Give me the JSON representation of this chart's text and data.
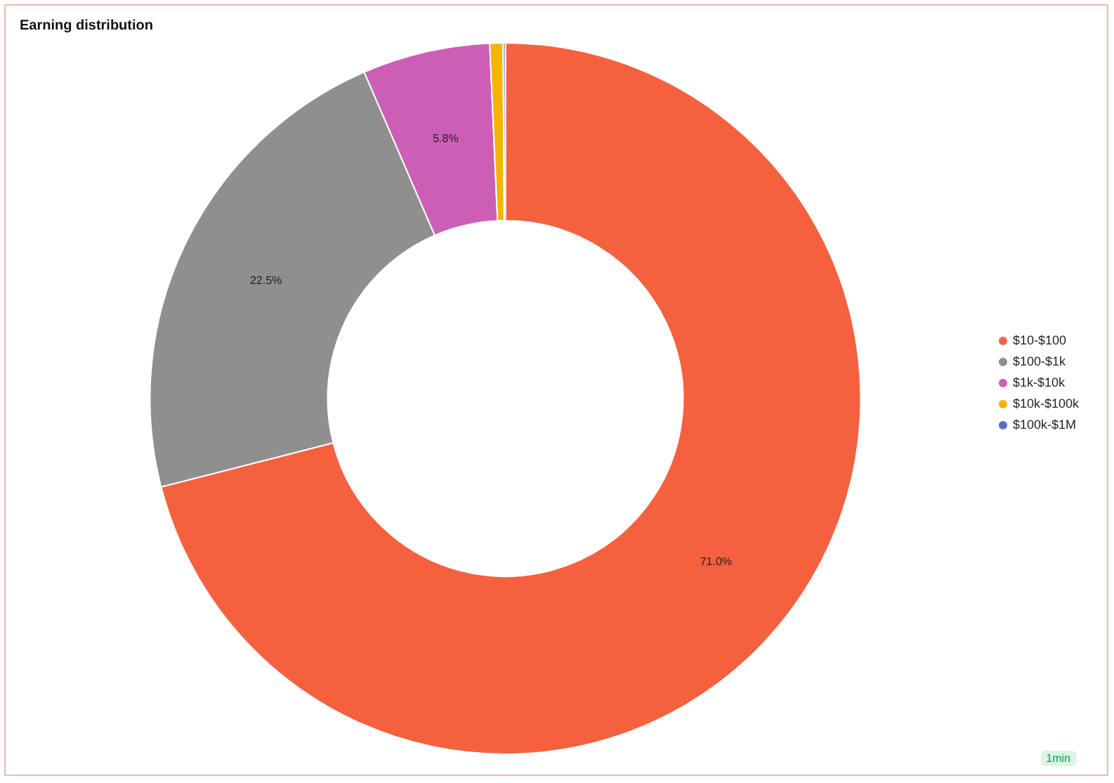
{
  "chart_data": {
    "type": "donut",
    "title": "Earning distribution",
    "categories": [
      "$10-$100",
      "$100-$1k",
      "$1k-$10k",
      "$10k-$100k",
      "$100k-$1M"
    ],
    "values": [
      71.0,
      22.5,
      5.8,
      0.6,
      0.1
    ],
    "colors": [
      "#f5613e",
      "#8f8f8f",
      "#cc5fb5",
      "#f5b400",
      "#5a6fc0"
    ],
    "value_labels": [
      "71.0%",
      "22.5%",
      "5.8%",
      null,
      null
    ],
    "legend": "right",
    "annotations": [
      "1min"
    ]
  }
}
